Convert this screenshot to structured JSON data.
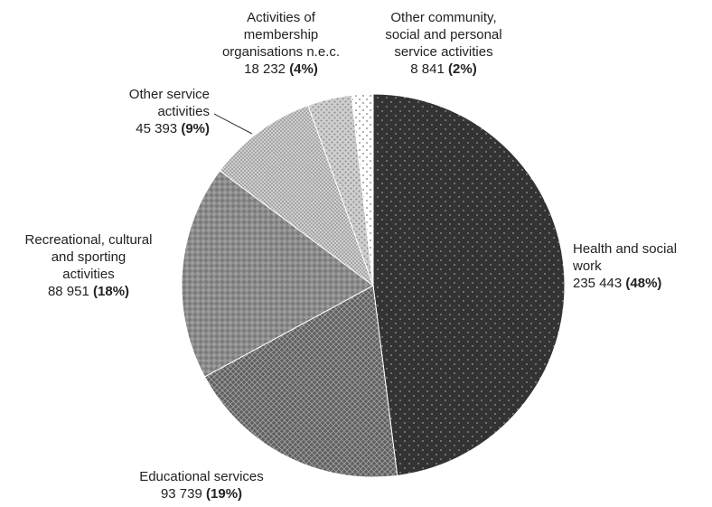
{
  "chart_data": {
    "type": "pie",
    "title": "",
    "slices": [
      {
        "id": "health",
        "value": 235443,
        "percent": "(48%)",
        "value_text": "235 443",
        "label_lines": [
          "Health and social",
          "work"
        ]
      },
      {
        "id": "education",
        "value": 93739,
        "percent": "(19%)",
        "value_text": "93 739",
        "label_lines": [
          "Educational services"
        ]
      },
      {
        "id": "recreation",
        "value": 88951,
        "percent": "(18%)",
        "value_text": "88 951",
        "label_lines": [
          "Recreational, cultural",
          "and sporting",
          "activities"
        ]
      },
      {
        "id": "other-service",
        "value": 45393,
        "percent": "(9%)",
        "value_text": "45 393",
        "label_lines": [
          "Other service",
          "activities"
        ]
      },
      {
        "id": "membership",
        "value": 18232,
        "percent": "(4%)",
        "value_text": "18 232",
        "label_lines": [
          "Activities of",
          "membership",
          "organisations n.e.c."
        ]
      },
      {
        "id": "other-community",
        "value": 8841,
        "percent": "(2%)",
        "value_text": "8 841",
        "label_lines": [
          "Other community,",
          "social and personal",
          "service activities"
        ]
      }
    ],
    "colors": [
      "#333333",
      "#6e6e6e",
      "#8c8c8c",
      "#b4b4b4",
      "#cccccc",
      "#ffffff"
    ],
    "start": "12 o'clock, clockwise",
    "legend": "none (labels beside slices)"
  }
}
